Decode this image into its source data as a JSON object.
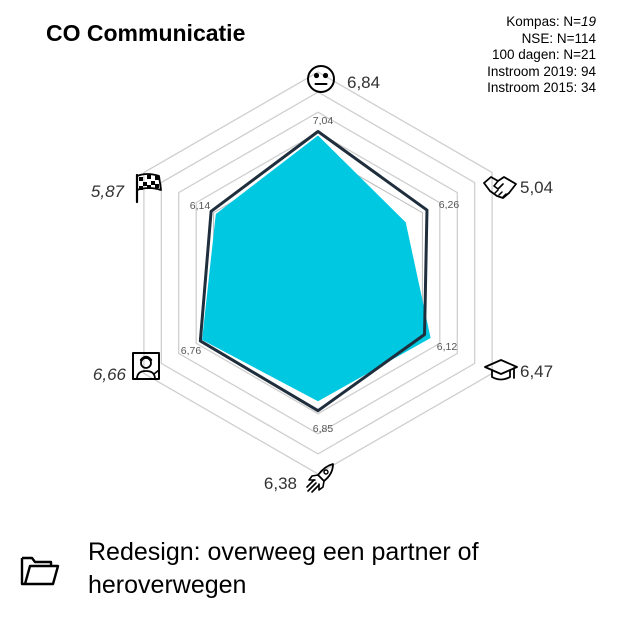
{
  "title": "CO Communicatie",
  "legend": [
    {
      "label": "Kompas: N=",
      "n": "19",
      "italic": true
    },
    {
      "label": "NSE: N=",
      "n": "114",
      "italic": false
    },
    {
      "label": "100 dagen: N=",
      "n": "21",
      "italic": false
    },
    {
      "label": "Instroom 2019: ",
      "n": "94",
      "italic": false
    },
    {
      "label": "Instroom 2015: ",
      "n": "34",
      "italic": false
    }
  ],
  "chart_data": {
    "type": "radar",
    "axes": [
      {
        "icon": "neutral-face-icon",
        "value_label": "6,84",
        "value_italic": false,
        "ref_label": "7,04"
      },
      {
        "icon": "handshake-icon",
        "value_label": "5,04",
        "value_italic": false,
        "ref_label": "6,26"
      },
      {
        "icon": "graduation-cap-icon",
        "value_label": "6,47",
        "value_italic": false,
        "ref_label": "6,12"
      },
      {
        "icon": "rocket-icon",
        "value_label": "6,38",
        "value_italic": false,
        "ref_label": "6,85"
      },
      {
        "icon": "teacher-icon",
        "value_label": "6,66",
        "value_italic": true,
        "ref_label": "6,76"
      },
      {
        "icon": "checkered-flag-icon",
        "value_label": "5,87",
        "value_italic": true,
        "ref_label": "6,14"
      }
    ],
    "series": [
      {
        "values": [
          6.84,
          5.04,
          6.47,
          6.38,
          6.66,
          5.87
        ],
        "color": "#00c8e0"
      },
      {
        "values": [
          7.04,
          6.26,
          6.12,
          6.85,
          6.76,
          6.14
        ],
        "color": "#1f2e3c"
      }
    ],
    "rlim": [
      0,
      10
    ],
    "rings": 10
  },
  "footer": {
    "icon": "folder-icon",
    "text": "Redesign: overweeg een partner of heroverwegen"
  }
}
